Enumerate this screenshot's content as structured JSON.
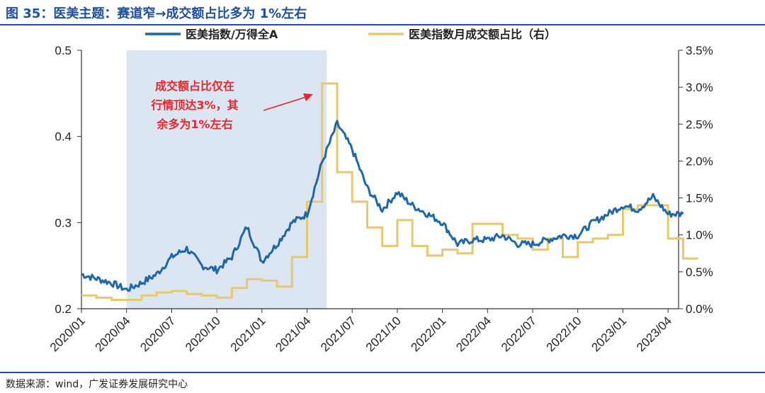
{
  "header": {
    "title": "图 35：医美主题：赛道窄→成交额占比多为 1%左右"
  },
  "footer": {
    "source": "数据来源：wind，广发证券发展研究中心"
  },
  "colors": {
    "blue": "#1f67a6",
    "gold": "#e6c86e",
    "shade": "#dce6f2",
    "red": "#e8262c",
    "brand": "#1f4e9a"
  },
  "chart_data": {
    "type": "line",
    "title": "",
    "x_ticks": [
      "2020/01",
      "2020/04",
      "2020/07",
      "2020/10",
      "2021/01",
      "2021/04",
      "2021/07",
      "2021/10",
      "2022/01",
      "2022/04",
      "2022/07",
      "2022/10",
      "2023/01",
      "2023/04"
    ],
    "y_left": {
      "min": 0.2,
      "max": 0.5,
      "ticks": [
        "0.2",
        "0.3",
        "0.4",
        "0.5"
      ]
    },
    "y_right": {
      "min": 0,
      "max": 3.5,
      "ticks": [
        "0.0%",
        "0.5%",
        "1.0%",
        "1.5%",
        "2.0%",
        "2.5%",
        "3.0%",
        "3.5%"
      ]
    },
    "shaded_region": {
      "from": "2020/04",
      "to": "2021/05"
    },
    "annotation": {
      "lines": [
        "成交额占比仅在",
        "行情顶达3%，其",
        "余多为1%左右"
      ]
    },
    "series": [
      {
        "name": "医美指数/万得全A",
        "axis": "left",
        "x": [
          "2020/01",
          "2020/02",
          "2020/03",
          "2020/04",
          "2020/05",
          "2020/06",
          "2020/07",
          "2020/08",
          "2020/09",
          "2020/10",
          "2020/11",
          "2020/12",
          "2021/01",
          "2021/02",
          "2021/03",
          "2021/04",
          "2021/05",
          "2021/06",
          "2021/07",
          "2021/08",
          "2021/09",
          "2021/10",
          "2021/11",
          "2021/12",
          "2022/01",
          "2022/02",
          "2022/03",
          "2022/04",
          "2022/05",
          "2022/06",
          "2022/07",
          "2022/08",
          "2022/09",
          "2022/10",
          "2022/11",
          "2022/12",
          "2023/01",
          "2023/02",
          "2023/03",
          "2023/04",
          "2023/05"
        ],
        "values": [
          0.24,
          0.235,
          0.23,
          0.222,
          0.23,
          0.24,
          0.26,
          0.27,
          0.25,
          0.245,
          0.26,
          0.295,
          0.255,
          0.275,
          0.3,
          0.31,
          0.37,
          0.415,
          0.385,
          0.34,
          0.315,
          0.335,
          0.32,
          0.31,
          0.3,
          0.275,
          0.28,
          0.28,
          0.285,
          0.275,
          0.275,
          0.28,
          0.285,
          0.285,
          0.3,
          0.31,
          0.32,
          0.315,
          0.33,
          0.31,
          0.31
        ]
      },
      {
        "name": "医美指数月成交额占比（右）",
        "axis": "right",
        "x": [
          "2020/01",
          "2020/02",
          "2020/03",
          "2020/04",
          "2020/05",
          "2020/06",
          "2020/07",
          "2020/08",
          "2020/09",
          "2020/10",
          "2020/11",
          "2020/12",
          "2021/01",
          "2021/02",
          "2021/03",
          "2021/04",
          "2021/05",
          "2021/06",
          "2021/07",
          "2021/08",
          "2021/09",
          "2021/10",
          "2021/11",
          "2021/12",
          "2022/01",
          "2022/02",
          "2022/03",
          "2022/04",
          "2022/05",
          "2022/06",
          "2022/07",
          "2022/08",
          "2022/09",
          "2022/10",
          "2022/11",
          "2022/12",
          "2023/01",
          "2023/02",
          "2023/03",
          "2023/04",
          "2023/05"
        ],
        "values": [
          0.18,
          0.15,
          0.12,
          0.12,
          0.18,
          0.22,
          0.24,
          0.2,
          0.18,
          0.15,
          0.28,
          0.4,
          0.38,
          0.3,
          0.7,
          1.45,
          3.05,
          1.85,
          1.45,
          1.1,
          0.85,
          1.2,
          0.85,
          0.72,
          0.8,
          0.75,
          1.15,
          1.15,
          1.0,
          0.95,
          0.8,
          0.95,
          0.7,
          0.9,
          0.95,
          1.0,
          1.35,
          1.4,
          1.4,
          0.95,
          0.68
        ]
      }
    ]
  }
}
